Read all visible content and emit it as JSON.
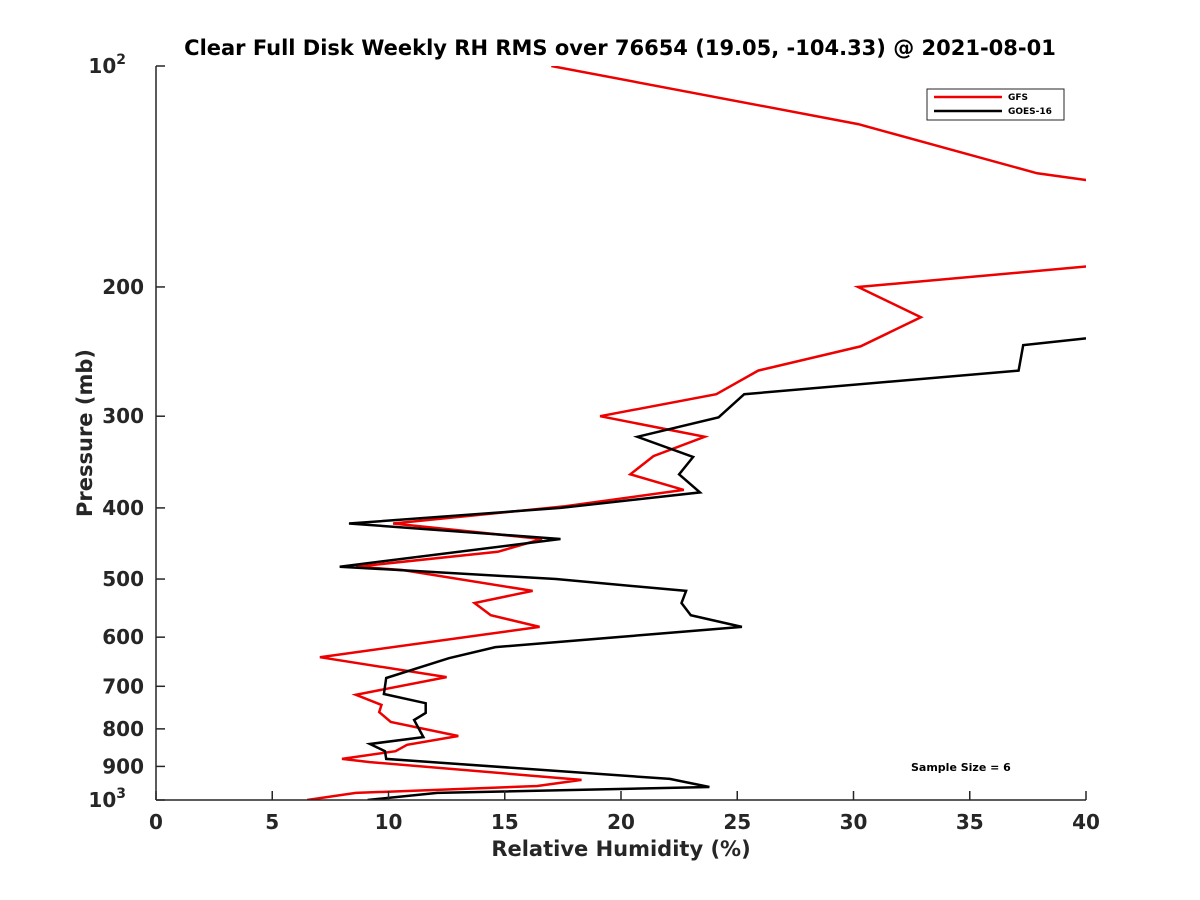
{
  "chart_data": {
    "type": "line",
    "title": "Clear Full Disk Weekly RH RMS over 76654 (19.05, -104.33) @ 2021-08-01",
    "xlabel": "Relative Humidity (%)",
    "ylabel": "Pressure (mb)",
    "xlim": [
      0,
      40
    ],
    "ylim": [
      100,
      1000
    ],
    "yscale": "log",
    "yreversed": true,
    "grid": false,
    "x_ticks": [
      "0",
      "5",
      "10",
      "15",
      "20",
      "25",
      "30",
      "35",
      "40"
    ],
    "x_tick_values": [
      0,
      5,
      10,
      15,
      20,
      25,
      30,
      35,
      40
    ],
    "y_ticks": [
      {
        "value": 100,
        "base": "10",
        "exp": "2"
      },
      {
        "value": 200,
        "label": "200"
      },
      {
        "value": 300,
        "label": "300"
      },
      {
        "value": 400,
        "label": "400"
      },
      {
        "value": 500,
        "label": "500"
      },
      {
        "value": 600,
        "label": "600"
      },
      {
        "value": 700,
        "label": "700"
      },
      {
        "value": 800,
        "label": "800"
      },
      {
        "value": 900,
        "label": "900"
      },
      {
        "value": 1000,
        "base": "10",
        "exp": "3"
      }
    ],
    "legend_position": "top-right",
    "annotation": "Sample Size = 6",
    "series": [
      {
        "name": "GFS",
        "color": "#ee0000",
        "points": [
          [
            100,
            17.0
          ],
          [
            120,
            30.2
          ],
          [
            140,
            37.9
          ],
          [
            143,
            40.0
          ],
          [
            165,
            46
          ],
          [
            187,
            40.5
          ],
          [
            200,
            30.2
          ],
          [
            220,
            32.9
          ],
          [
            241,
            30.3
          ],
          [
            260,
            25.9
          ],
          [
            280,
            24.1
          ],
          [
            300,
            19.1
          ],
          [
            320,
            23.6
          ],
          [
            340,
            21.4
          ],
          [
            360,
            20.4
          ],
          [
            378,
            22.7
          ],
          [
            398,
            17.6
          ],
          [
            420,
            10.2
          ],
          [
            441,
            16.6
          ],
          [
            459,
            14.7
          ],
          [
            481,
            8.6
          ],
          [
            486,
            10.6
          ],
          [
            519,
            16.2
          ],
          [
            539,
            13.7
          ],
          [
            560,
            14.4
          ],
          [
            581,
            16.5
          ],
          [
            639,
            7.05
          ],
          [
            680,
            12.5
          ],
          [
            719,
            8.6
          ],
          [
            742,
            9.7
          ],
          [
            759,
            9.6
          ],
          [
            783,
            10.1
          ],
          [
            818,
            13.0
          ],
          [
            841,
            10.8
          ],
          [
            858,
            10.3
          ],
          [
            879,
            8.0
          ],
          [
            888,
            9.2
          ],
          [
            939,
            18.3
          ],
          [
            957,
            16.4
          ],
          [
            978,
            8.6
          ],
          [
            1000,
            6.5
          ]
        ]
      },
      {
        "name": "GOES-16",
        "color": "#000000",
        "points": [
          [
            230,
            42
          ],
          [
            235,
            40.0
          ],
          [
            240,
            37.3
          ],
          [
            260,
            37.1
          ],
          [
            280,
            25.3
          ],
          [
            301,
            24.2
          ],
          [
            320,
            20.7
          ],
          [
            341,
            23.1
          ],
          [
            360,
            22.5
          ],
          [
            381,
            23.4
          ],
          [
            400,
            17.4
          ],
          [
            420,
            8.3
          ],
          [
            441,
            17.4
          ],
          [
            481,
            7.9
          ],
          [
            500,
            17.2
          ],
          [
            519,
            22.8
          ],
          [
            539,
            22.6
          ],
          [
            560,
            23.0
          ],
          [
            581,
            25.2
          ],
          [
            619,
            14.6
          ],
          [
            641,
            12.6
          ],
          [
            682,
            9.9
          ],
          [
            717,
            9.8
          ],
          [
            738,
            11.6
          ],
          [
            761,
            11.6
          ],
          [
            778,
            11.1
          ],
          [
            821,
            11.5
          ],
          [
            839,
            9.2
          ],
          [
            858,
            9.85
          ],
          [
            879,
            9.9
          ],
          [
            936,
            22.1
          ],
          [
            960,
            23.8
          ],
          [
            978,
            12.1
          ],
          [
            1000,
            9.1
          ]
        ]
      }
    ]
  }
}
